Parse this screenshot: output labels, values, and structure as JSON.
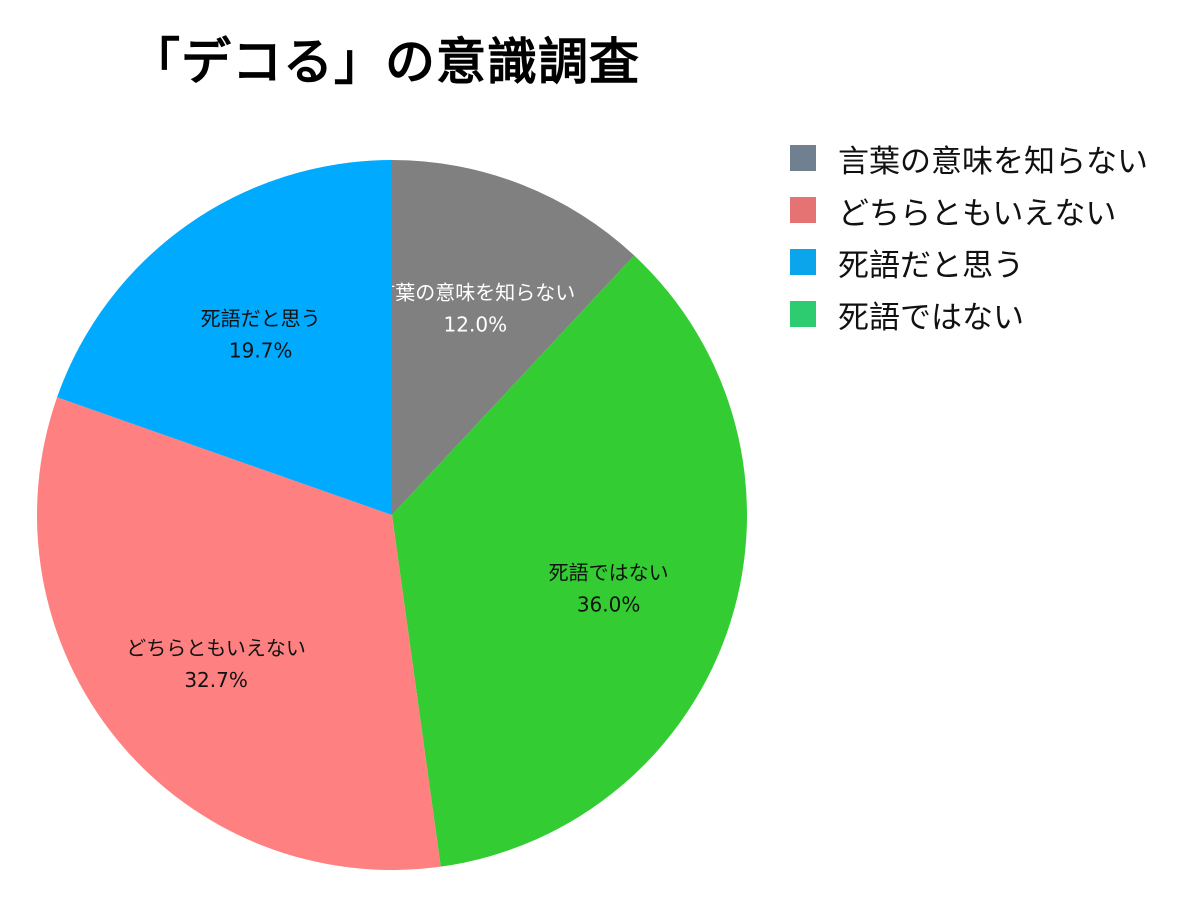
{
  "chart_data": {
    "type": "pie",
    "title": "「デコる」の意識調査",
    "start_angle_deg": 0,
    "direction": "clockwise",
    "slices": [
      {
        "label": "言葉の意味を知らない",
        "value": 12.0,
        "value_label": "12.0%",
        "color": "#808080",
        "text_color": "#ffffff"
      },
      {
        "label": "死語ではない",
        "value": 36.0,
        "value_label": "36.0%",
        "color": "#33cc33",
        "text_color": "#111111"
      },
      {
        "label": "どちらともいえない",
        "value": 32.7,
        "value_label": "32.7%",
        "color": "#ff8080",
        "text_color": "#111111"
      },
      {
        "label": "死語だと思う",
        "value": 19.7,
        "value_label": "19.7%",
        "color": "#00aaff",
        "text_color": "#111111"
      }
    ],
    "legend_position": "right",
    "legend": [
      {
        "label": "言葉の意味を知らない",
        "color": "#708090"
      },
      {
        "label": "どちらともいえない",
        "color": "#e57373"
      },
      {
        "label": "死語だと思う",
        "color": "#0ba5ec"
      },
      {
        "label": "死語ではない",
        "color": "#2ecc71"
      }
    ]
  }
}
